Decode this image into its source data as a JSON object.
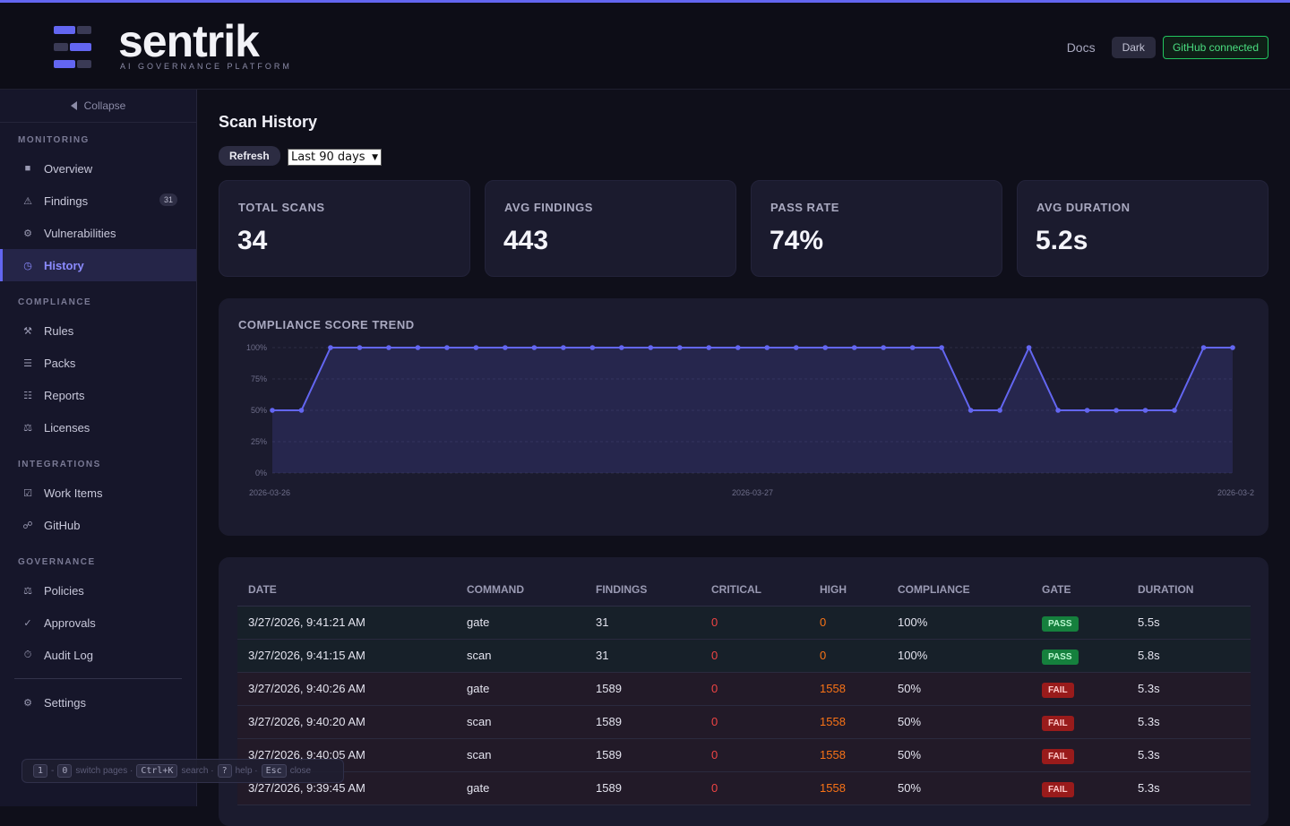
{
  "header": {
    "brand": "sentrik",
    "tagline": "AI GOVERNANCE PLATFORM",
    "docs": "Docs",
    "theme": "Dark",
    "github": "GitHub connected",
    "accent": "#6366f1"
  },
  "sidebar": {
    "collapse": "Collapse",
    "sections": [
      {
        "title": "MONITORING",
        "items": [
          {
            "label": "Overview",
            "icon": "square-icon"
          },
          {
            "label": "Findings",
            "icon": "warning-icon",
            "count": "31"
          },
          {
            "label": "Vulnerabilities",
            "icon": "gear-icon"
          },
          {
            "label": "History",
            "icon": "clock-icon",
            "active": true
          }
        ]
      },
      {
        "title": "COMPLIANCE",
        "items": [
          {
            "label": "Rules",
            "icon": "tools-icon"
          },
          {
            "label": "Packs",
            "icon": "list-icon"
          },
          {
            "label": "Reports",
            "icon": "report-icon"
          },
          {
            "label": "Licenses",
            "icon": "scale-icon"
          }
        ]
      },
      {
        "title": "INTEGRATIONS",
        "items": [
          {
            "label": "Work Items",
            "icon": "checkbox-icon"
          },
          {
            "label": "GitHub",
            "icon": "link-icon"
          }
        ]
      },
      {
        "title": "GOVERNANCE",
        "items": [
          {
            "label": "Policies",
            "icon": "scale-icon"
          },
          {
            "label": "Approvals",
            "icon": "check-icon"
          },
          {
            "label": "Audit Log",
            "icon": "stopwatch-icon"
          }
        ]
      }
    ],
    "settings": "Settings"
  },
  "page": {
    "title": "Scan History",
    "refresh": "Refresh",
    "range": "Last 90 days"
  },
  "stats": [
    {
      "label": "TOTAL SCANS",
      "value": "34"
    },
    {
      "label": "AVG FINDINGS",
      "value": "443"
    },
    {
      "label": "PASS RATE",
      "value": "74%"
    },
    {
      "label": "AVG DURATION",
      "value": "5.2s"
    }
  ],
  "chart_data": {
    "type": "area",
    "title": "COMPLIANCE SCORE TREND",
    "x_tick_labels": [
      "2026-03-26",
      "2026-03-27",
      "2026-03-2"
    ],
    "y_tick_labels": [
      "100%",
      "75%",
      "50%",
      "25%",
      "0%"
    ],
    "ylim": [
      0,
      100
    ],
    "grid": true,
    "color": "#6366f1",
    "values": [
      50,
      50,
      100,
      100,
      100,
      100,
      100,
      100,
      100,
      100,
      100,
      100,
      100,
      100,
      100,
      100,
      100,
      100,
      100,
      100,
      100,
      100,
      100,
      100,
      50,
      50,
      100,
      50,
      50,
      50,
      50,
      50,
      100,
      100
    ]
  },
  "table": {
    "columns": [
      "DATE",
      "COMMAND",
      "FINDINGS",
      "CRITICAL",
      "HIGH",
      "COMPLIANCE",
      "GATE",
      "DURATION"
    ],
    "rows": [
      {
        "date": "3/27/2026, 9:41:21 AM",
        "command": "gate",
        "findings": "31",
        "critical": "0",
        "high": "0",
        "compliance": "100%",
        "gate": "PASS",
        "duration": "5.5s"
      },
      {
        "date": "3/27/2026, 9:41:15 AM",
        "command": "scan",
        "findings": "31",
        "critical": "0",
        "high": "0",
        "compliance": "100%",
        "gate": "PASS",
        "duration": "5.8s"
      },
      {
        "date": "3/27/2026, 9:40:26 AM",
        "command": "gate",
        "findings": "1589",
        "critical": "0",
        "high": "1558",
        "compliance": "50%",
        "gate": "FAIL",
        "duration": "5.3s"
      },
      {
        "date": "3/27/2026, 9:40:20 AM",
        "command": "scan",
        "findings": "1589",
        "critical": "0",
        "high": "1558",
        "compliance": "50%",
        "gate": "FAIL",
        "duration": "5.3s"
      },
      {
        "date": "3/27/2026, 9:40:05 AM",
        "command": "scan",
        "findings": "1589",
        "critical": "0",
        "high": "1558",
        "compliance": "50%",
        "gate": "FAIL",
        "duration": "5.3s"
      },
      {
        "date": "3/27/2026, 9:39:45 AM",
        "command": "gate",
        "findings": "1589",
        "critical": "0",
        "high": "1558",
        "compliance": "50%",
        "gate": "FAIL",
        "duration": "5.3s"
      }
    ]
  },
  "shortcuts": {
    "k1": "1",
    "sep": "-",
    "k2": "0",
    "t1": "switch pages ·",
    "k3": "Ctrl+K",
    "t2": "search ·",
    "k4": "?",
    "t3": "help ·",
    "k5": "Esc",
    "t4": "close"
  }
}
